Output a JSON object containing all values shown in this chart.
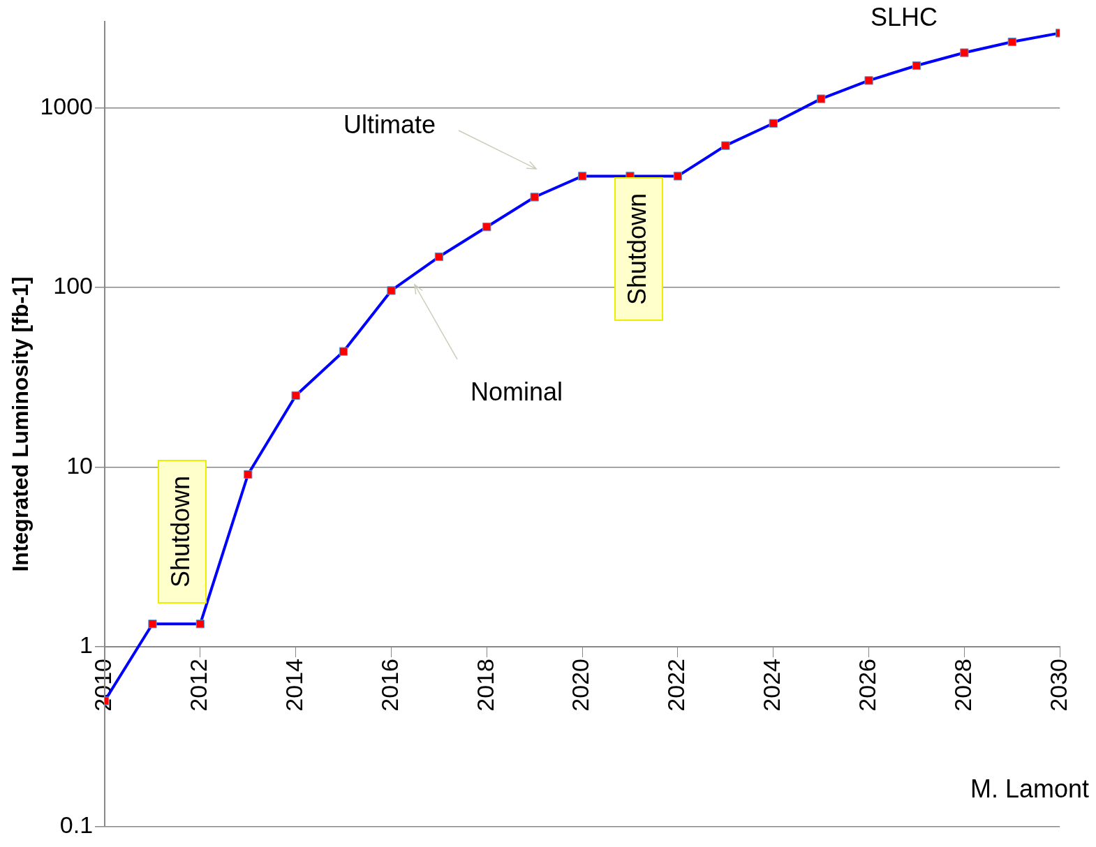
{
  "chart_data": {
    "type": "line",
    "ylabel": "Integrated Luminosity [fb-1]",
    "x": [
      2010,
      2011,
      2012,
      2013,
      2014,
      2015,
      2016,
      2017,
      2018,
      2019,
      2020,
      2021,
      2022,
      2023,
      2024,
      2025,
      2026,
      2027,
      2028,
      2029,
      2030
    ],
    "series": [
      {
        "color": "#0000ff",
        "values": [
          0.5,
          1.34,
          1.34,
          9.1,
          25,
          44,
          96,
          148,
          217,
          318,
          416,
          416,
          416,
          615,
          818,
          1120,
          1416,
          1714,
          2022,
          2322,
          2600
        ]
      }
    ],
    "xlim": [
      2010,
      2030
    ],
    "xticks": [
      2010,
      2012,
      2014,
      2016,
      2018,
      2020,
      2022,
      2024,
      2026,
      2028,
      2030
    ],
    "ylim": [
      0.1,
      3000
    ],
    "yticks": [
      0.1,
      1,
      10,
      100,
      1000
    ],
    "log": "y",
    "grid": "y",
    "legend": false,
    "marker": "square",
    "line_style": "solid",
    "annotations": [
      "Ultimate",
      "Nominal",
      "SLHC",
      "Shutdown",
      "Shutdown",
      "M. Lamont"
    ]
  }
}
